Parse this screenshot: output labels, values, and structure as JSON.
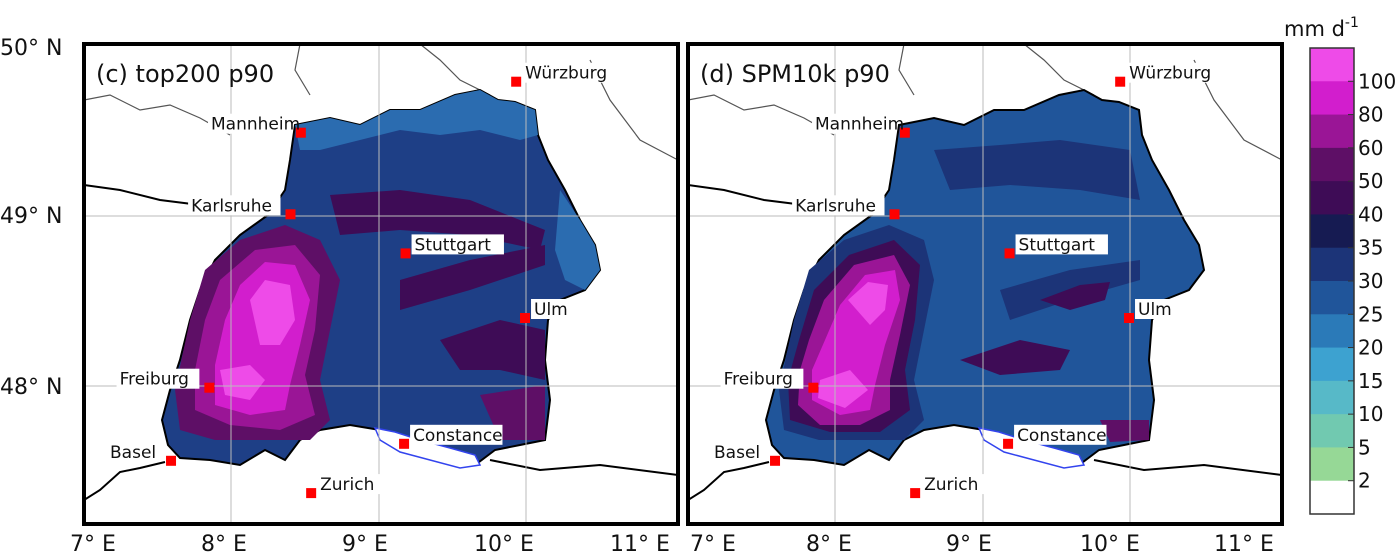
{
  "panels": [
    {
      "id": "c",
      "label": "(c) top200 p90"
    },
    {
      "id": "d",
      "label": "(d) SPM10k p90"
    }
  ],
  "lat_labels": [
    "50° N",
    "49° N",
    "48° N"
  ],
  "lon_labels": [
    "7° E",
    "8° E",
    "9° E",
    "10° E",
    "11° E"
  ],
  "cities": [
    {
      "name": "Würzburg",
      "lon": 9.93,
      "lat": 49.79
    },
    {
      "name": "Mannheim",
      "lon": 8.47,
      "lat": 49.49
    },
    {
      "name": "Karlsruhe",
      "lon": 8.4,
      "lat": 49.01
    },
    {
      "name": "Stuttgart",
      "lon": 9.18,
      "lat": 48.78
    },
    {
      "name": "Ulm",
      "lon": 9.99,
      "lat": 48.4
    },
    {
      "name": "Freiburg",
      "lon": 7.85,
      "lat": 47.99
    },
    {
      "name": "Constance",
      "lon": 9.17,
      "lat": 47.66
    },
    {
      "name": "Basel",
      "lon": 7.59,
      "lat": 47.56
    },
    {
      "name": "Zurich",
      "lon": 8.54,
      "lat": 47.37
    }
  ],
  "colorbar": {
    "unit": "mm d",
    "unit_exp": "-1",
    "ticks": [
      "100",
      "80",
      "60",
      "50",
      "40",
      "35",
      "30",
      "25",
      "20",
      "15",
      "10",
      "5",
      "2"
    ],
    "colors": [
      "#ee4be8",
      "#d21ecd",
      "#9a1596",
      "#5e0f66",
      "#3e0c56",
      "#161b52",
      "#1c3478",
      "#20559a",
      "#2b7ab8",
      "#3da2d0",
      "#57b9c8",
      "#71c9b0",
      "#96d896",
      "#ffffff"
    ]
  },
  "map_colors": {
    "land_bg": "#ffffff",
    "border": "#000000",
    "grid": "#bbbbbb",
    "city_marker": "#ff0000",
    "lake": "#3344ee"
  }
}
